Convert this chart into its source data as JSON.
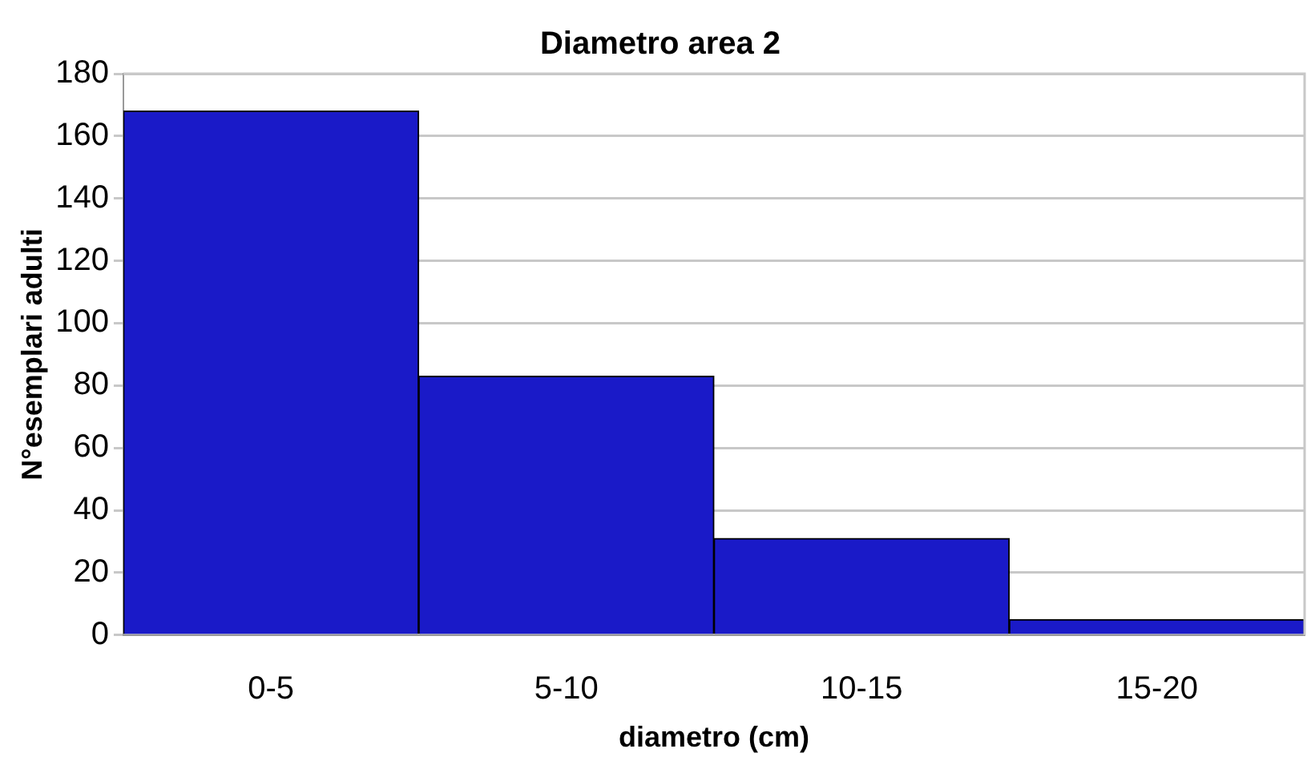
{
  "chart_data": {
    "type": "bar",
    "title": "Diametro area 2",
    "xlabel": "diametro (cm)",
    "ylabel": "N°esemplari adulti",
    "categories": [
      "0-5",
      "5-10",
      "10-15",
      "15-20"
    ],
    "values": [
      168,
      83,
      31,
      5
    ],
    "color": "#1a1ac8",
    "ylim": [
      0,
      180
    ],
    "yticks": [
      0,
      20,
      40,
      60,
      80,
      100,
      120,
      140,
      160,
      180
    ],
    "grid": "y",
    "legend": false
  }
}
